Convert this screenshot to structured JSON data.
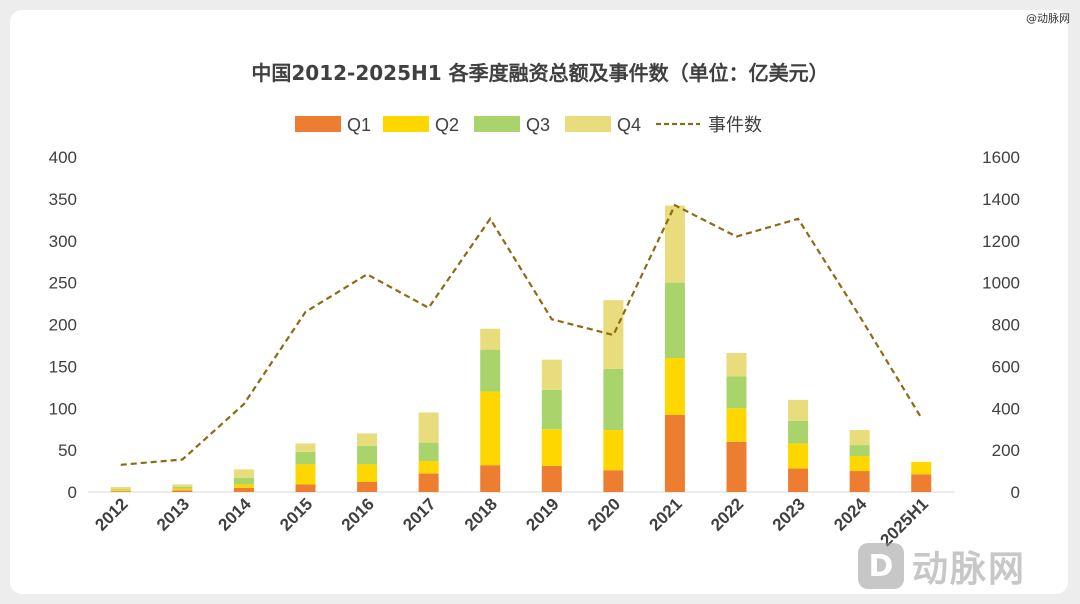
{
  "watermark": "@动脉网",
  "logo": {
    "mark": "D",
    "text": "动脉网"
  },
  "colors": {
    "q1": "#ED7D31",
    "q2": "#FFD700",
    "q3": "#A9D46B",
    "q4": "#E8DC7C",
    "events": "#8B6B14",
    "axis_text": "#404040"
  },
  "chart_data": {
    "type": "bar",
    "title": "中国2012-2025H1 各季度融资总额及事件数（单位：亿美元）",
    "categories": [
      "2012",
      "2013",
      "2014",
      "2015",
      "2016",
      "2017",
      "2018",
      "2019",
      "2020",
      "2021",
      "2022",
      "2023",
      "2024",
      "2025H1"
    ],
    "stacked": true,
    "series": [
      {
        "name": "Q1",
        "type": "bar",
        "axis": "left",
        "values": [
          1,
          2,
          5,
          9,
          12,
          22,
          32,
          31,
          26,
          92,
          60,
          28,
          25,
          21
        ]
      },
      {
        "name": "Q2",
        "type": "bar",
        "axis": "left",
        "values": [
          1,
          2,
          4,
          24,
          21,
          15,
          88,
          44,
          48,
          68,
          40,
          30,
          18,
          15
        ]
      },
      {
        "name": "Q3",
        "type": "bar",
        "axis": "left",
        "values": [
          1,
          2,
          8,
          15,
          22,
          22,
          50,
          47,
          73,
          90,
          38,
          27,
          13,
          0
        ]
      },
      {
        "name": "Q4",
        "type": "bar",
        "axis": "left",
        "values": [
          3,
          3,
          10,
          10,
          15,
          36,
          25,
          36,
          82,
          92,
          28,
          25,
          18,
          0
        ]
      },
      {
        "name": "事件数",
        "type": "line",
        "axis": "right",
        "style": "dashed",
        "values": [
          130,
          155,
          420,
          860,
          1040,
          880,
          1305,
          825,
          750,
          1370,
          1220,
          1305,
          840,
          355
        ]
      }
    ],
    "y_left": {
      "min": 0,
      "max": 400,
      "ticks": [
        "0",
        "50",
        "100",
        "150",
        "200",
        "250",
        "300",
        "350",
        "400"
      ]
    },
    "y_right": {
      "min": 0,
      "max": 1600,
      "ticks": [
        "0",
        "200",
        "400",
        "600",
        "800",
        "1000",
        "1200",
        "1400",
        "1600"
      ]
    },
    "legend": {
      "placement": "top-center",
      "items": [
        "Q1",
        "Q2",
        "Q3",
        "Q4",
        "事件数"
      ]
    },
    "grid": false
  }
}
